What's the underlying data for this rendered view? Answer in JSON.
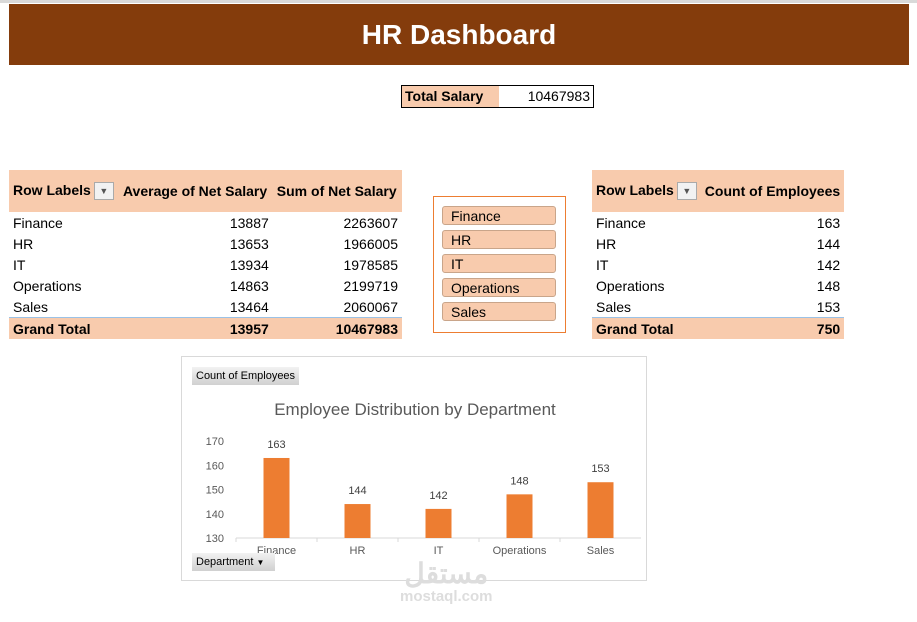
{
  "header": {
    "title": "HR Dashboard"
  },
  "total_salary": {
    "label": "Total Salary",
    "value": "10467983"
  },
  "salary_pivot": {
    "headers": [
      "Row Labels",
      "Average of Net Salary",
      "Sum of Net Salary"
    ],
    "rows": [
      [
        "Finance",
        "13887",
        "2263607"
      ],
      [
        "HR",
        "13653",
        "1966005"
      ],
      [
        "IT",
        "13934",
        "1978585"
      ],
      [
        "Operations",
        "14863",
        "2199719"
      ],
      [
        "Sales",
        "13464",
        "2060067"
      ]
    ],
    "grand_total": [
      "Grand Total",
      "13957",
      "10467983"
    ]
  },
  "count_pivot": {
    "headers": [
      "Row Labels",
      "Count of Employees"
    ],
    "rows": [
      [
        "Finance",
        "163"
      ],
      [
        "HR",
        "144"
      ],
      [
        "IT",
        "142"
      ],
      [
        "Operations",
        "148"
      ],
      [
        "Sales",
        "153"
      ]
    ],
    "grand_total": [
      "Grand Total",
      "750"
    ]
  },
  "slicer": {
    "items": [
      "Finance",
      "HR",
      "IT",
      "Operations",
      "Sales"
    ]
  },
  "chart_buttons": {
    "value_field": "Count of Employees",
    "axis_field": "Department"
  },
  "chart_data": {
    "type": "bar",
    "title": "Employee Distribution by Department",
    "categories": [
      "Finance",
      "HR",
      "IT",
      "Operations",
      "Sales"
    ],
    "values": [
      163,
      144,
      142,
      148,
      153
    ],
    "ylim": [
      130,
      170
    ],
    "yticks": [
      130,
      140,
      150,
      160,
      170
    ],
    "data_labels": true,
    "color": "#ed7d31",
    "grid": false
  },
  "watermark": {
    "arabic": "مستقل",
    "latin": "mostaql.com"
  },
  "colors": {
    "banner": "#843c0c",
    "header_fill": "#f8cbad",
    "bar": "#ed7d31"
  }
}
